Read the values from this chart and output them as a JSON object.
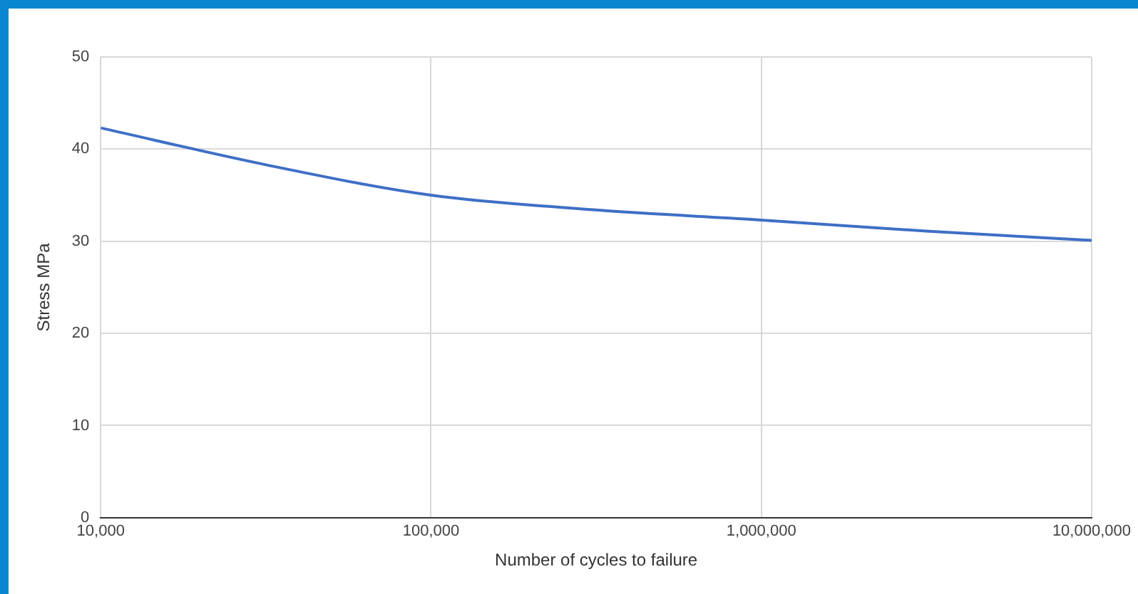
{
  "chart_data": {
    "type": "line",
    "xlabel": "Number of cycles to failure",
    "ylabel": "Stress MPa",
    "x": [
      10000,
      31623,
      100000,
      316228,
      1000000,
      3162278,
      10000000
    ],
    "series": [
      {
        "color": "#3e6fc6",
        "values": [
          42.3,
          38.3,
          35.0,
          33.4,
          32.3,
          31.1,
          30.1
        ]
      }
    ],
    "log": "x",
    "xlim": [
      10000,
      10000000
    ],
    "xticks": [
      {
        "value": 10000,
        "label": "10,000"
      },
      {
        "value": 100000,
        "label": "100,000"
      },
      {
        "value": 1000000,
        "label": "1,000,000"
      },
      {
        "value": 10000000,
        "label": "10,000,000"
      }
    ],
    "ylim": [
      0,
      50
    ],
    "yticks": [
      0,
      10,
      20,
      30,
      40,
      50
    ],
    "grid": true,
    "legend": false,
    "marker": "none",
    "line_style": "solid"
  }
}
